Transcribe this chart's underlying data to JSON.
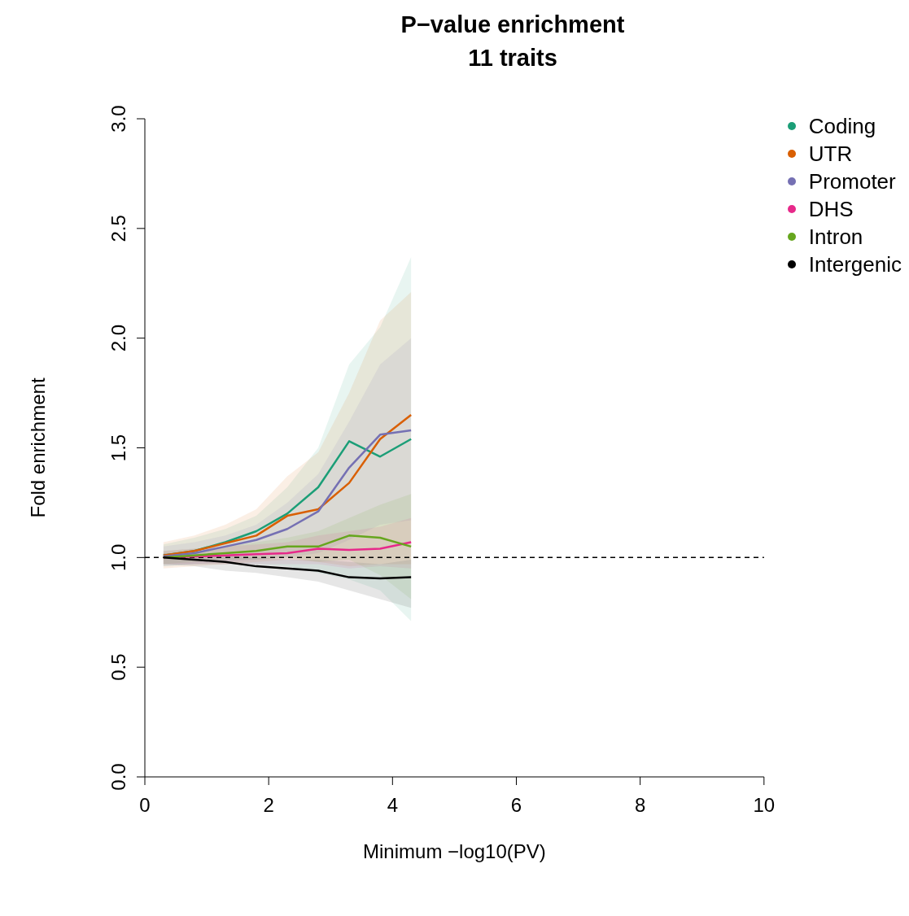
{
  "chart_data": {
    "type": "line",
    "title": "P−value enrichment",
    "subtitle": "11 traits",
    "xlabel": "Minimum −log10(PV)",
    "ylabel": "Fold enrichment",
    "x": [
      0.3,
      0.8,
      1.3,
      1.8,
      2.3,
      2.8,
      3.3,
      3.8,
      4.3
    ],
    "xlim": [
      0,
      10
    ],
    "xticks": [
      0,
      2,
      4,
      6,
      8,
      10
    ],
    "ylim": [
      0,
      3
    ],
    "yticks": [
      {
        "value": 0,
        "label": "0.0"
      },
      {
        "value": 0.5,
        "label": "0.5"
      },
      {
        "value": 1,
        "label": "1.0"
      },
      {
        "value": 1.5,
        "label": "1.5"
      },
      {
        "value": 2,
        "label": "2.0"
      },
      {
        "value": 2.5,
        "label": "2.5"
      },
      {
        "value": 3,
        "label": "3.0"
      }
    ],
    "series": [
      {
        "name": "Coding",
        "color": "#1b9e77",
        "values": [
          1.01,
          1.03,
          1.07,
          1.12,
          1.2,
          1.32,
          1.53,
          1.46,
          1.54
        ],
        "lower": [
          0.96,
          0.97,
          0.97,
          0.97,
          0.96,
          0.93,
          0.9,
          0.85,
          0.71
        ],
        "upper": [
          1.06,
          1.09,
          1.13,
          1.19,
          1.32,
          1.5,
          1.88,
          2.05,
          2.37
        ]
      },
      {
        "name": "UTR",
        "color": "#d95f02",
        "values": [
          1.01,
          1.03,
          1.065,
          1.1,
          1.19,
          1.22,
          1.34,
          1.54,
          1.65
        ],
        "lower": [
          0.95,
          0.96,
          0.97,
          0.98,
          0.99,
          0.98,
          0.96,
          0.97,
          0.97
        ],
        "upper": [
          1.07,
          1.1,
          1.15,
          1.22,
          1.37,
          1.48,
          1.75,
          2.08,
          2.21
        ]
      },
      {
        "name": "Promoter",
        "color": "#7570b3",
        "values": [
          1.005,
          1.02,
          1.05,
          1.08,
          1.13,
          1.21,
          1.41,
          1.56,
          1.58
        ],
        "lower": [
          0.96,
          0.97,
          0.98,
          0.99,
          1.0,
          1.02,
          1.08,
          1.15,
          1.17
        ],
        "upper": [
          1.05,
          1.07,
          1.1,
          1.15,
          1.25,
          1.38,
          1.62,
          1.88,
          2.0
        ]
      },
      {
        "name": "DHS",
        "color": "#e7298a",
        "values": [
          1.0,
          1.005,
          1.01,
          1.015,
          1.02,
          1.04,
          1.035,
          1.04,
          1.07
        ],
        "lower": [
          0.97,
          0.97,
          0.97,
          0.97,
          0.97,
          0.97,
          0.95,
          0.96,
          0.95
        ],
        "upper": [
          1.03,
          1.04,
          1.05,
          1.06,
          1.07,
          1.1,
          1.12,
          1.14,
          1.18
        ]
      },
      {
        "name": "Intron",
        "color": "#66a61e",
        "values": [
          1.0,
          1.01,
          1.02,
          1.03,
          1.05,
          1.05,
          1.1,
          1.09,
          1.05
        ],
        "lower": [
          0.97,
          0.98,
          0.99,
          0.99,
          1.0,
          0.98,
          0.99,
          0.92,
          0.81
        ],
        "upper": [
          1.03,
          1.04,
          1.05,
          1.07,
          1.09,
          1.12,
          1.18,
          1.24,
          1.29
        ]
      },
      {
        "name": "Intergenic",
        "color": "#000000",
        "values": [
          1.0,
          0.99,
          0.98,
          0.96,
          0.95,
          0.94,
          0.91,
          0.905,
          0.91
        ],
        "lower": [
          0.97,
          0.96,
          0.94,
          0.93,
          0.91,
          0.89,
          0.85,
          0.81,
          0.77
        ],
        "upper": [
          1.02,
          1.02,
          1.01,
          1.0,
          0.99,
          0.99,
          0.98,
          0.97,
          0.99
        ]
      }
    ],
    "ref_lines": [
      {
        "axis": "y",
        "value": 1,
        "line_style": "dashed"
      }
    ],
    "legend": "top right",
    "grid": false,
    "marker": "none",
    "line_style": "solid"
  }
}
